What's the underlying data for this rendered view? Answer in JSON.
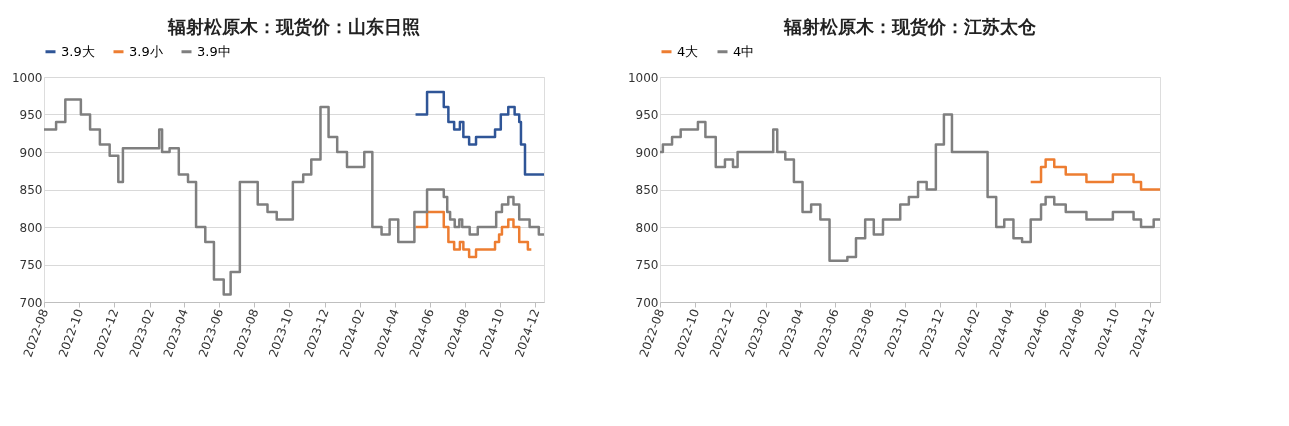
{
  "chart_data": [
    {
      "type": "step",
      "title": "辐射松原木：现货价：山东日照",
      "legend": "top",
      "grid": "y",
      "xlim": [
        "2022-08-01",
        "2024-12-16"
      ],
      "xticks": [
        "2022-08",
        "2022-10",
        "2022-12",
        "2023-02",
        "2023-04",
        "2023-06",
        "2023-08",
        "2023-10",
        "2023-12",
        "2024-02",
        "2024-04",
        "2024-06",
        "2024-08",
        "2024-10",
        "2024-12"
      ],
      "ylim": [
        700,
        1000
      ],
      "yticks": [
        700,
        750,
        800,
        850,
        900,
        950,
        1000
      ],
      "series": [
        {
          "name": "3.9大",
          "color": "#2f5597",
          "x": [
            "2024-05-07",
            "2024-05-27",
            "2024-06-25",
            "2024-07-03",
            "2024-07-13",
            "2024-07-23",
            "2024-07-29",
            "2024-08-08",
            "2024-08-20",
            "2024-09-22",
            "2024-10-02",
            "2024-10-15",
            "2024-10-26",
            "2024-11-03",
            "2024-11-06",
            "2024-11-13",
            "2024-12-16"
          ],
          "values": [
            950,
            980,
            960,
            940,
            930,
            940,
            920,
            910,
            920,
            930,
            950,
            960,
            950,
            940,
            910,
            870,
            870
          ]
        },
        {
          "name": "3.9小",
          "color": "#ed7d31",
          "x": [
            "2024-05-07",
            "2024-05-27",
            "2024-06-25",
            "2024-07-03",
            "2024-07-13",
            "2024-07-23",
            "2024-07-29",
            "2024-08-08",
            "2024-08-20",
            "2024-09-22",
            "2024-09-29",
            "2024-10-04",
            "2024-10-15",
            "2024-10-24",
            "2024-11-03",
            "2024-11-18",
            "2024-11-24"
          ],
          "values": [
            800,
            820,
            800,
            780,
            770,
            780,
            770,
            760,
            770,
            780,
            790,
            800,
            810,
            800,
            780,
            770,
            770
          ]
        },
        {
          "name": "3.9中",
          "color": "#7f7f7f",
          "x": [
            "2022-08-01",
            "2022-08-22",
            "2022-09-07",
            "2022-10-04",
            "2022-10-20",
            "2022-11-06",
            "2022-11-23",
            "2022-12-08",
            "2022-12-16",
            "2023-02-17",
            "2023-02-22",
            "2023-03-07",
            "2023-03-23",
            "2023-04-08",
            "2023-04-22",
            "2023-05-08",
            "2023-05-23",
            "2023-06-09",
            "2023-06-21",
            "2023-07-07",
            "2023-08-07",
            "2023-08-24",
            "2023-09-09",
            "2023-10-07",
            "2023-10-25",
            "2023-11-08",
            "2023-11-24",
            "2023-12-08",
            "2023-12-23",
            "2024-01-09",
            "2024-02-08",
            "2024-02-22",
            "2024-03-09",
            "2024-03-23",
            "2024-04-07",
            "2024-05-05",
            "2024-05-27",
            "2024-06-25",
            "2024-07-01",
            "2024-07-06",
            "2024-07-14",
            "2024-07-22",
            "2024-07-27",
            "2024-08-09",
            "2024-08-23",
            "2024-09-24",
            "2024-10-04",
            "2024-10-15",
            "2024-10-24",
            "2024-11-03",
            "2024-11-21",
            "2024-12-07",
            "2024-12-16"
          ],
          "values": [
            930,
            940,
            970,
            950,
            930,
            910,
            895,
            860,
            905,
            930,
            900,
            905,
            870,
            860,
            800,
            780,
            730,
            710,
            740,
            860,
            830,
            820,
            810,
            860,
            870,
            890,
            960,
            920,
            900,
            880,
            900,
            800,
            790,
            810,
            780,
            820,
            850,
            840,
            820,
            810,
            800,
            810,
            800,
            790,
            800,
            820,
            830,
            840,
            830,
            810,
            800,
            790,
            790
          ]
        }
      ]
    },
    {
      "type": "step",
      "title": "辐射松原木：现货价：江苏太仓",
      "legend": "top",
      "grid": "y",
      "xlim": [
        "2022-08-01",
        "2024-12-18"
      ],
      "xticks": [
        "2022-08",
        "2022-10",
        "2022-12",
        "2023-02",
        "2023-04",
        "2023-06",
        "2023-08",
        "2023-10",
        "2023-12",
        "2024-02",
        "2024-04",
        "2024-06",
        "2024-08",
        "2024-10",
        "2024-12"
      ],
      "ylim": [
        700,
        1000
      ],
      "yticks": [
        700,
        750,
        800,
        850,
        900,
        950,
        1000
      ],
      "series": [
        {
          "name": "4大",
          "color": "#ed7d31",
          "x": [
            "2024-05-07",
            "2024-05-25",
            "2024-06-02",
            "2024-06-17",
            "2024-07-07",
            "2024-08-12",
            "2024-09-27",
            "2024-11-02",
            "2024-11-15",
            "2024-12-18"
          ],
          "values": [
            860,
            880,
            890,
            880,
            870,
            860,
            870,
            860,
            850,
            850
          ]
        },
        {
          "name": "4中",
          "color": "#7f7f7f",
          "x": [
            "2022-08-01",
            "2022-08-06",
            "2022-08-22",
            "2022-09-06",
            "2022-10-06",
            "2022-10-19",
            "2022-11-06",
            "2022-11-22",
            "2022-12-06",
            "2022-12-14",
            "2023-02-14",
            "2023-02-21",
            "2023-03-07",
            "2023-03-22",
            "2023-04-06",
            "2023-04-21",
            "2023-05-07",
            "2023-05-23",
            "2023-06-23",
            "2023-07-08",
            "2023-07-24",
            "2023-08-08",
            "2023-08-24",
            "2023-09-23",
            "2023-10-08",
            "2023-10-24",
            "2023-11-08",
            "2023-11-24",
            "2023-12-08",
            "2023-12-22",
            "2024-02-22",
            "2024-03-08",
            "2024-03-22",
            "2024-04-07",
            "2024-04-22",
            "2024-05-07",
            "2024-05-25",
            "2024-06-02",
            "2024-06-17",
            "2024-07-07",
            "2024-08-12",
            "2024-09-27",
            "2024-11-02",
            "2024-11-15",
            "2024-12-07",
            "2024-12-18"
          ],
          "values": [
            900,
            910,
            920,
            930,
            940,
            920,
            880,
            890,
            880,
            900,
            930,
            900,
            890,
            860,
            820,
            830,
            810,
            755,
            760,
            785,
            810,
            790,
            810,
            830,
            840,
            860,
            850,
            910,
            950,
            900,
            840,
            800,
            810,
            785,
            780,
            810,
            830,
            840,
            830,
            820,
            810,
            820,
            810,
            800,
            810,
            810
          ]
        }
      ]
    }
  ]
}
